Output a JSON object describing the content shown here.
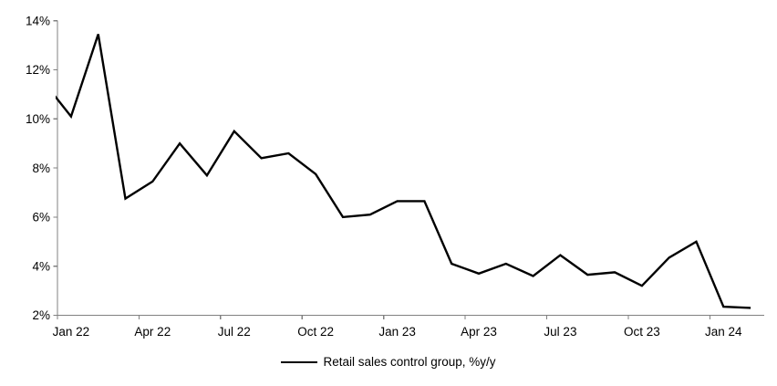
{
  "page": {
    "background": "#ffffff"
  },
  "chart_data": {
    "type": "line",
    "title": "",
    "grid": false,
    "colors": {
      "line": "#000000",
      "axis": "#808080",
      "text": "#000000",
      "background": "#ffffff"
    },
    "x_axis": {
      "tick_labels": [
        "Jan 22",
        "Apr 22",
        "Jul 22",
        "Oct 22",
        "Jan 23",
        "Apr 23",
        "Jul 23",
        "Oct 23",
        "Jan 24"
      ],
      "tick_interval_months": 3,
      "label_alignment": "centered-under-month"
    },
    "y_axis": {
      "min": 2,
      "max": 14,
      "step": 2,
      "unit": "%",
      "tick_labels": [
        "2%",
        "4%",
        "6%",
        "8%",
        "10%",
        "12%",
        "14%"
      ]
    },
    "legend": {
      "position": "bottom-center",
      "entries": [
        "Retail sales control group, %y/y"
      ]
    },
    "series": [
      {
        "name": "Retail sales control group, %y/y",
        "color": "#000000",
        "x": [
          "Dec 21",
          "Jan 22",
          "Feb 22",
          "Mar 22",
          "Apr 22",
          "May 22",
          "Jun 22",
          "Jul 22",
          "Aug 22",
          "Sep 22",
          "Oct 22",
          "Nov 22",
          "Dec 22",
          "Jan 23",
          "Feb 23",
          "Mar 23",
          "Apr 23",
          "May 23",
          "Jun 23",
          "Jul 23",
          "Aug 23",
          "Sep 23",
          "Oct 23",
          "Nov 23",
          "Dec 23",
          "Jan 24",
          "Feb 24"
        ],
        "values": [
          11.5,
          10.1,
          13.45,
          6.75,
          7.45,
          9.0,
          7.7,
          9.5,
          8.4,
          8.6,
          7.75,
          6.0,
          6.1,
          6.65,
          6.65,
          4.1,
          3.7,
          4.1,
          3.6,
          4.45,
          3.65,
          3.75,
          3.2,
          4.35,
          5.0,
          2.35,
          2.3
        ],
        "first_point_clipped_at_axis": true
      }
    ]
  }
}
